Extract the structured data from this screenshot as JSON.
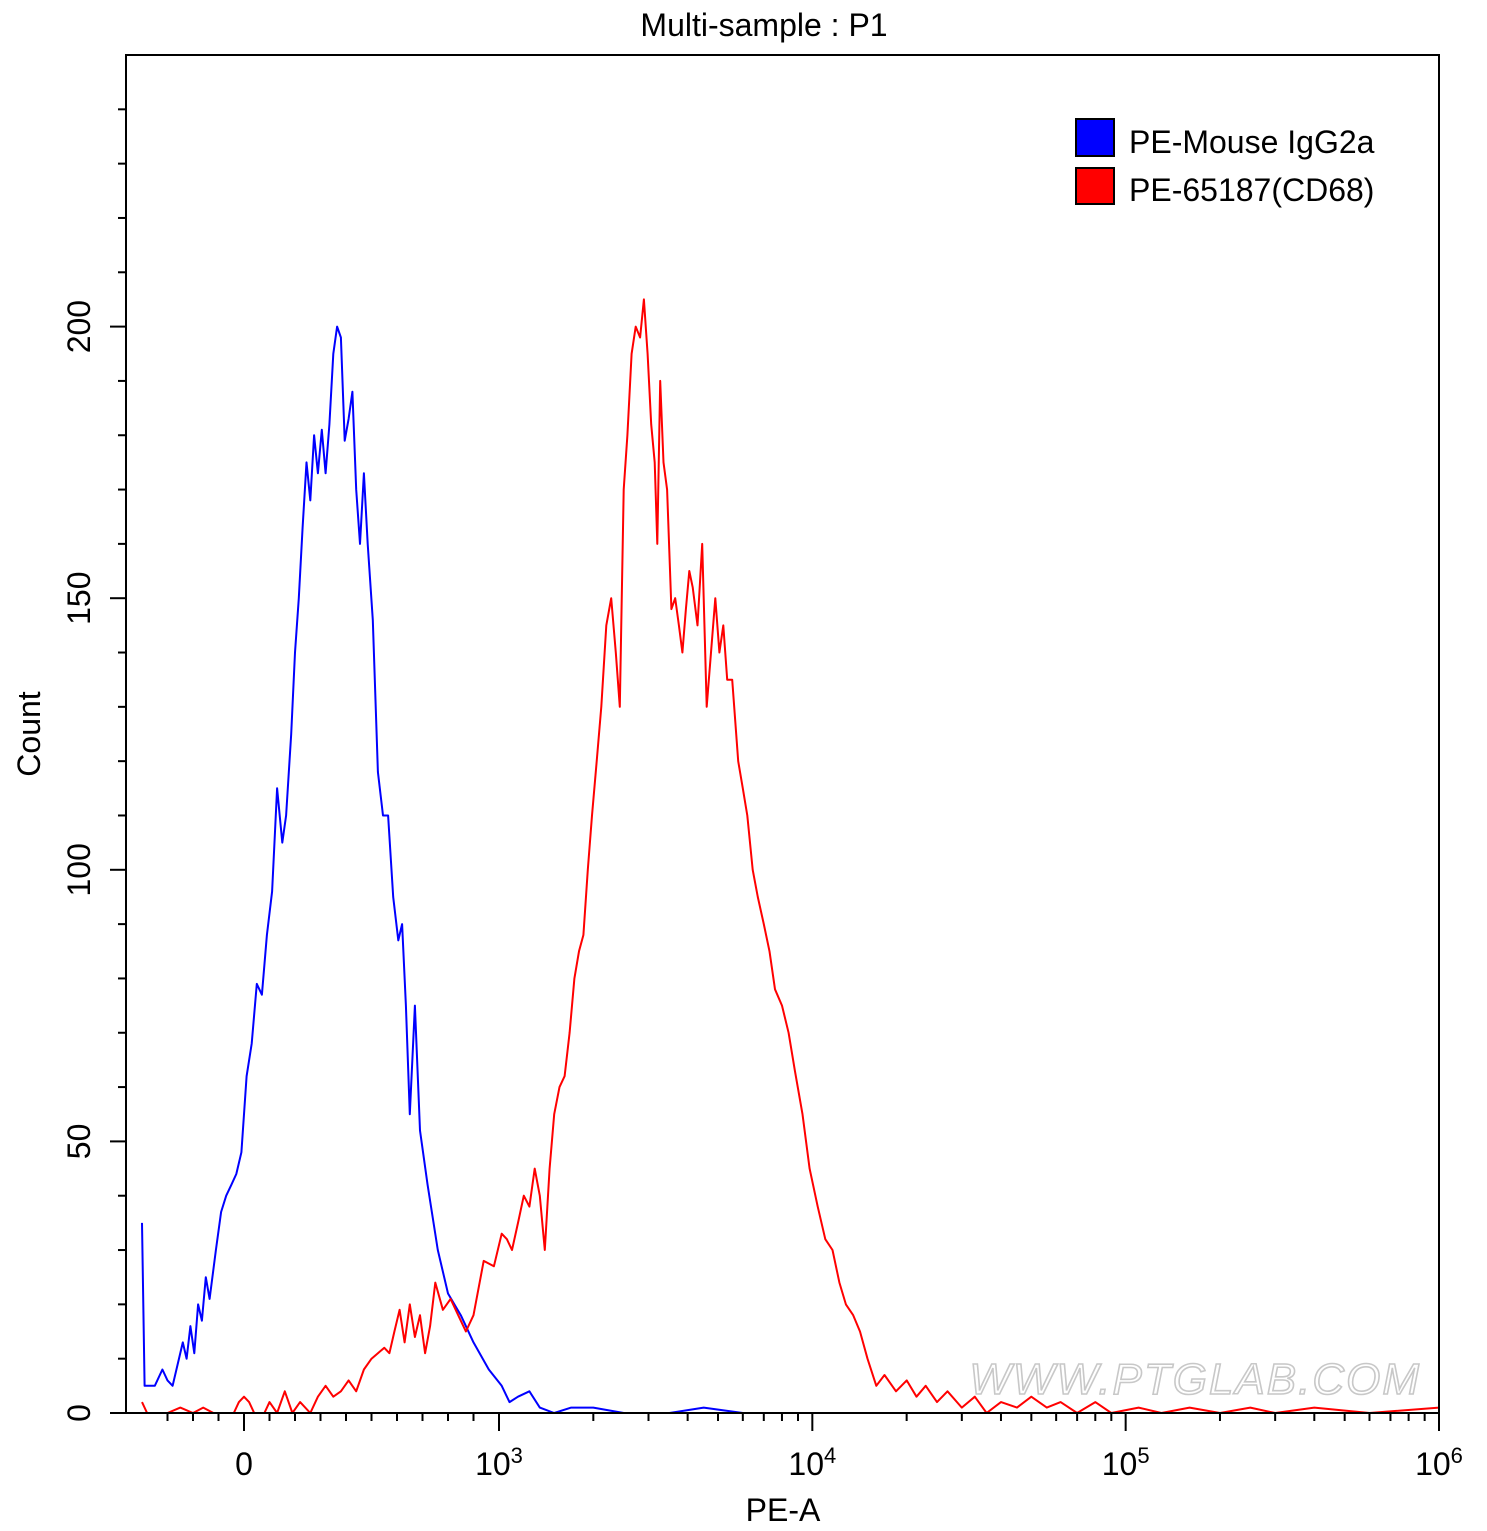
{
  "chart_data": {
    "type": "line",
    "title": "Multi-sample : P1",
    "xlabel": "PE-A",
    "ylabel": "Count",
    "x_scale": "biexponential",
    "xlim": [
      -400,
      1000000
    ],
    "ylim": [
      0,
      250
    ],
    "grid": false,
    "legend_position": "top-right",
    "x_ticks": [
      {
        "value": 0,
        "base": "0",
        "exp": ""
      },
      {
        "value": 1000,
        "base": "10",
        "exp": "3"
      },
      {
        "value": 10000,
        "base": "10",
        "exp": "4"
      },
      {
        "value": 100000,
        "base": "10",
        "exp": "5"
      },
      {
        "value": 1000000,
        "base": "10",
        "exp": "6"
      }
    ],
    "y_ticks": [
      0,
      50,
      100,
      150,
      200
    ],
    "series": [
      {
        "name": "PE-Mouse IgG2a",
        "color": "#0000ff",
        "points": [
          [
            -400,
            35
          ],
          [
            -390,
            5
          ],
          [
            -370,
            5
          ],
          [
            -350,
            5
          ],
          [
            -320,
            8
          ],
          [
            -300,
            6
          ],
          [
            -280,
            5
          ],
          [
            -260,
            9
          ],
          [
            -240,
            13
          ],
          [
            -225,
            10
          ],
          [
            -210,
            16
          ],
          [
            -195,
            11
          ],
          [
            -180,
            20
          ],
          [
            -165,
            17
          ],
          [
            -150,
            25
          ],
          [
            -135,
            21
          ],
          [
            -110,
            30
          ],
          [
            -90,
            37
          ],
          [
            -70,
            40
          ],
          [
            -50,
            42
          ],
          [
            -30,
            44
          ],
          [
            -10,
            48
          ],
          [
            10,
            62
          ],
          [
            30,
            68
          ],
          [
            50,
            79
          ],
          [
            70,
            77
          ],
          [
            90,
            88
          ],
          [
            110,
            96
          ],
          [
            130,
            115
          ],
          [
            150,
            105
          ],
          [
            165,
            110
          ],
          [
            185,
            125
          ],
          [
            200,
            140
          ],
          [
            215,
            150
          ],
          [
            230,
            163
          ],
          [
            245,
            175
          ],
          [
            260,
            168
          ],
          [
            275,
            180
          ],
          [
            290,
            173
          ],
          [
            305,
            181
          ],
          [
            320,
            173
          ],
          [
            335,
            182
          ],
          [
            350,
            195
          ],
          [
            365,
            200
          ],
          [
            380,
            198
          ],
          [
            395,
            179
          ],
          [
            410,
            183
          ],
          [
            425,
            188
          ],
          [
            440,
            170
          ],
          [
            455,
            160
          ],
          [
            470,
            173
          ],
          [
            485,
            160
          ],
          [
            505,
            146
          ],
          [
            525,
            118
          ],
          [
            545,
            110
          ],
          [
            565,
            110
          ],
          [
            585,
            95
          ],
          [
            605,
            87
          ],
          [
            620,
            90
          ],
          [
            635,
            75
          ],
          [
            650,
            55
          ],
          [
            670,
            75
          ],
          [
            690,
            52
          ],
          [
            720,
            42
          ],
          [
            760,
            30
          ],
          [
            800,
            22
          ],
          [
            850,
            18
          ],
          [
            900,
            13
          ],
          [
            960,
            8
          ],
          [
            1020,
            5
          ],
          [
            1080,
            2
          ],
          [
            1150,
            3
          ],
          [
            1250,
            4
          ],
          [
            1350,
            1
          ],
          [
            1500,
            0
          ],
          [
            1700,
            1
          ],
          [
            2000,
            1
          ],
          [
            2500,
            0
          ],
          [
            3500,
            0
          ],
          [
            4500,
            1
          ],
          [
            6000,
            0
          ]
        ]
      },
      {
        "name": "PE-65187(CD68)",
        "color": "#ff0000",
        "points": [
          [
            -400,
            2
          ],
          [
            -380,
            0
          ],
          [
            -300,
            0
          ],
          [
            -250,
            1
          ],
          [
            -200,
            0
          ],
          [
            -160,
            1
          ],
          [
            -120,
            0
          ],
          [
            -40,
            0
          ],
          [
            -20,
            2
          ],
          [
            0,
            3
          ],
          [
            20,
            2
          ],
          [
            40,
            0
          ],
          [
            80,
            0
          ],
          [
            100,
            2
          ],
          [
            130,
            0
          ],
          [
            160,
            4
          ],
          [
            190,
            0
          ],
          [
            220,
            2
          ],
          [
            260,
            0
          ],
          [
            290,
            3
          ],
          [
            320,
            5
          ],
          [
            350,
            3
          ],
          [
            380,
            4
          ],
          [
            410,
            6
          ],
          [
            440,
            4
          ],
          [
            470,
            8
          ],
          [
            500,
            10
          ],
          [
            525,
            11
          ],
          [
            550,
            12
          ],
          [
            570,
            11
          ],
          [
            590,
            15
          ],
          [
            610,
            19
          ],
          [
            630,
            13
          ],
          [
            650,
            20
          ],
          [
            670,
            14
          ],
          [
            690,
            18
          ],
          [
            710,
            11
          ],
          [
            730,
            16
          ],
          [
            750,
            24
          ],
          [
            780,
            19
          ],
          [
            810,
            21
          ],
          [
            840,
            18
          ],
          [
            870,
            15
          ],
          [
            900,
            18
          ],
          [
            940,
            28
          ],
          [
            980,
            27
          ],
          [
            1020,
            33
          ],
          [
            1060,
            32
          ],
          [
            1100,
            30
          ],
          [
            1150,
            35
          ],
          [
            1200,
            40
          ],
          [
            1250,
            38
          ],
          [
            1300,
            45
          ],
          [
            1350,
            40
          ],
          [
            1400,
            30
          ],
          [
            1450,
            45
          ],
          [
            1500,
            55
          ],
          [
            1560,
            60
          ],
          [
            1620,
            62
          ],
          [
            1680,
            70
          ],
          [
            1740,
            80
          ],
          [
            1800,
            85
          ],
          [
            1860,
            88
          ],
          [
            1920,
            100
          ],
          [
            1980,
            110
          ],
          [
            2050,
            120
          ],
          [
            2120,
            130
          ],
          [
            2200,
            145
          ],
          [
            2280,
            150
          ],
          [
            2360,
            140
          ],
          [
            2430,
            130
          ],
          [
            2500,
            170
          ],
          [
            2570,
            180
          ],
          [
            2650,
            195
          ],
          [
            2730,
            200
          ],
          [
            2820,
            198
          ],
          [
            2900,
            205
          ],
          [
            2980,
            195
          ],
          [
            3060,
            182
          ],
          [
            3140,
            175
          ],
          [
            3200,
            160
          ],
          [
            3270,
            190
          ],
          [
            3350,
            175
          ],
          [
            3440,
            170
          ],
          [
            3550,
            148
          ],
          [
            3650,
            150
          ],
          [
            3750,
            145
          ],
          [
            3850,
            140
          ],
          [
            3950,
            148
          ],
          [
            4050,
            155
          ],
          [
            4150,
            152
          ],
          [
            4300,
            145
          ],
          [
            4450,
            160
          ],
          [
            4600,
            130
          ],
          [
            4750,
            140
          ],
          [
            4900,
            150
          ],
          [
            5050,
            140
          ],
          [
            5200,
            145
          ],
          [
            5350,
            135
          ],
          [
            5550,
            135
          ],
          [
            5800,
            120
          ],
          [
            6000,
            115
          ],
          [
            6200,
            110
          ],
          [
            6450,
            100
          ],
          [
            6700,
            95
          ],
          [
            7000,
            90
          ],
          [
            7300,
            85
          ],
          [
            7600,
            78
          ],
          [
            8000,
            75
          ],
          [
            8400,
            70
          ],
          [
            8800,
            63
          ],
          [
            9300,
            55
          ],
          [
            9800,
            45
          ],
          [
            10400,
            38
          ],
          [
            11000,
            32
          ],
          [
            11600,
            30
          ],
          [
            12200,
            24
          ],
          [
            12800,
            20
          ],
          [
            13500,
            18
          ],
          [
            14200,
            15
          ],
          [
            15000,
            10
          ],
          [
            16000,
            5
          ],
          [
            17000,
            7
          ],
          [
            18500,
            4
          ],
          [
            20000,
            6
          ],
          [
            21500,
            3
          ],
          [
            23000,
            5
          ],
          [
            25000,
            2
          ],
          [
            27000,
            4
          ],
          [
            30000,
            1
          ],
          [
            33000,
            3
          ],
          [
            36000,
            0
          ],
          [
            40000,
            2
          ],
          [
            45000,
            1
          ],
          [
            50000,
            3
          ],
          [
            56000,
            1
          ],
          [
            62000,
            2
          ],
          [
            70000,
            0
          ],
          [
            80000,
            2
          ],
          [
            90000,
            0
          ],
          [
            110000,
            1
          ],
          [
            130000,
            0
          ],
          [
            160000,
            1
          ],
          [
            200000,
            0
          ],
          [
            250000,
            1
          ],
          [
            300000,
            0
          ],
          [
            400000,
            1
          ],
          [
            600000,
            0
          ],
          [
            1000000,
            1
          ]
        ]
      }
    ]
  },
  "watermark": "WWW.PTGLAB.COM"
}
